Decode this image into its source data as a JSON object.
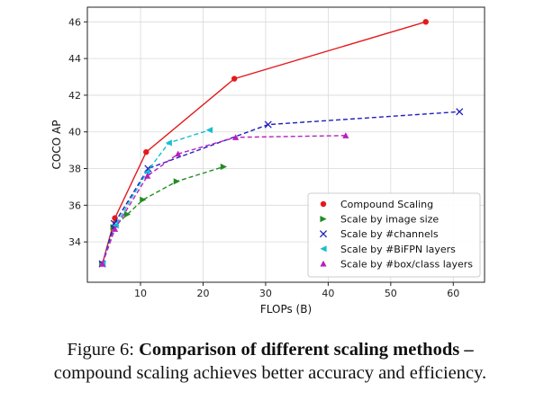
{
  "chart_data": {
    "type": "line",
    "title": "",
    "xlabel": "FLOPs (B)",
    "ylabel": "COCO AP",
    "xlim": [
      1.5,
      65
    ],
    "ylim": [
      31.8,
      46.8
    ],
    "xticks": [
      10,
      20,
      30,
      40,
      50,
      60
    ],
    "yticks": [
      34,
      36,
      38,
      40,
      42,
      44,
      46
    ],
    "grid": true,
    "legend_position": "lower-right",
    "series": [
      {
        "name": "Compound Scaling",
        "color": "#e31a1c",
        "dashed": false,
        "marker": "circle",
        "x": [
          3.9,
          5.9,
          10.9,
          25.0,
          55.6
        ],
        "y": [
          32.8,
          35.3,
          38.9,
          42.9,
          46.0
        ]
      },
      {
        "name": "Scale by image size",
        "color": "#238b23",
        "dashed": true,
        "marker": "triangle-right",
        "x": [
          3.9,
          5.7,
          7.9,
          10.4,
          15.8,
          23.3
        ],
        "y": [
          32.8,
          34.8,
          35.5,
          36.3,
          37.3,
          38.1
        ]
      },
      {
        "name": "Scale by #channels",
        "color": "#1f1fbf",
        "dashed": true,
        "marker": "x",
        "x": [
          3.9,
          5.8,
          11.2,
          30.4,
          61.0
        ],
        "y": [
          32.8,
          35.0,
          38.0,
          40.4,
          41.1
        ]
      },
      {
        "name": "Scale by #BiFPN layers",
        "color": "#17becf",
        "dashed": true,
        "marker": "triangle-left",
        "x": [
          3.9,
          6.0,
          11.0,
          14.5,
          21.0
        ],
        "y": [
          32.8,
          34.9,
          37.8,
          39.4,
          40.1
        ]
      },
      {
        "name": "Scale by #box/class layers",
        "color": "#b81fbf",
        "dashed": true,
        "marker": "triangle-up",
        "x": [
          3.9,
          5.9,
          11.1,
          16.0,
          25.2,
          42.8
        ],
        "y": [
          32.8,
          34.7,
          37.6,
          38.8,
          39.7,
          39.8
        ]
      }
    ]
  },
  "caption": {
    "label": "Figure 6:",
    "bold": "Comparison of different scaling methods –",
    "text": "compound scaling achieves better accuracy and efficiency."
  }
}
